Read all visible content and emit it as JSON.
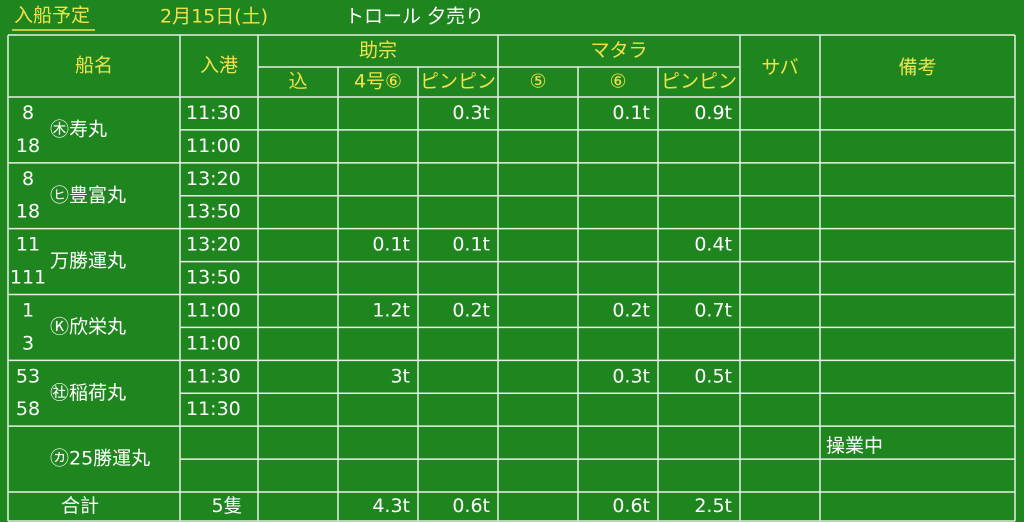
{
  "header": {
    "title": "入船予定",
    "date": "2月15日(土)",
    "kind": "トロール 夕売り"
  },
  "table": {
    "columns": {
      "ship": "船名",
      "port": "入港",
      "group1": "助宗",
      "group2": "マタラ",
      "saba": "サバ",
      "remarks": "備考",
      "sub": [
        "込",
        "4号⑥",
        "ピンピン",
        "⑤",
        "⑥",
        "ピンピン"
      ]
    },
    "boats": [
      {
        "nums": [
          "8",
          "18"
        ],
        "name": "㊍寿丸",
        "times": [
          "11:30",
          "11:00"
        ],
        "cells": [
          [
            null,
            null,
            "0.3t",
            null,
            "0.1t",
            "0.9t",
            null
          ],
          [
            null,
            null,
            null,
            null,
            null,
            null,
            null
          ]
        ],
        "remark": null
      },
      {
        "nums": [
          "8",
          "18"
        ],
        "name": "㋪豊富丸",
        "times": [
          "13:20",
          "13:50"
        ],
        "cells": [
          [
            null,
            null,
            null,
            null,
            null,
            null,
            null
          ],
          [
            null,
            null,
            null,
            null,
            null,
            null,
            null
          ]
        ],
        "remark": null
      },
      {
        "nums": [
          "11",
          "111"
        ],
        "name": "万勝運丸",
        "times": [
          "13:20",
          "13:50"
        ],
        "cells": [
          [
            null,
            "0.1t",
            "0.1t",
            null,
            null,
            "0.4t",
            null
          ],
          [
            null,
            null,
            null,
            null,
            null,
            null,
            null
          ]
        ],
        "remark": null
      },
      {
        "nums": [
          "1",
          "3"
        ],
        "name": "Ⓚ欣栄丸",
        "times": [
          "11:00",
          "11:00"
        ],
        "cells": [
          [
            null,
            "1.2t",
            "0.2t",
            null,
            "0.2t",
            "0.7t",
            null
          ],
          [
            null,
            null,
            null,
            null,
            null,
            null,
            null
          ]
        ],
        "remark": null
      },
      {
        "nums": [
          "53",
          "58"
        ],
        "name": "㊓稲荷丸",
        "times": [
          "11:30",
          "11:30"
        ],
        "cells": [
          [
            null,
            "3t",
            null,
            null,
            "0.3t",
            "0.5t",
            null
          ],
          [
            null,
            null,
            null,
            null,
            null,
            null,
            null
          ]
        ],
        "remark": null
      },
      {
        "nums": [
          null,
          null
        ],
        "name": "㋕25勝運丸",
        "times": [
          null,
          null
        ],
        "cells": [
          [
            null,
            null,
            null,
            null,
            null,
            null,
            null
          ],
          [
            null,
            null,
            null,
            null,
            null,
            null,
            null
          ]
        ],
        "remark": "操業中"
      }
    ],
    "total": {
      "label": "合計",
      "count": "5隻",
      "cells": [
        null,
        "4.3t",
        "0.6t",
        null,
        "0.6t",
        "2.5t",
        null
      ]
    }
  }
}
